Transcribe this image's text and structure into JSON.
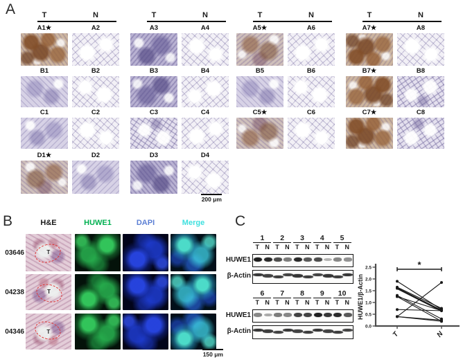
{
  "panelA": {
    "label": "A",
    "pair_headers": [
      "T",
      "N"
    ],
    "rows": [
      {
        "cells": [
          {
            "label": "A1★",
            "stain": "brown-strong"
          },
          {
            "label": "A2",
            "stain": "lacy"
          },
          {
            "label": "A3",
            "stain": "purple"
          },
          {
            "label": "A4",
            "stain": "lacy"
          },
          {
            "label": "A5★",
            "stain": "brown"
          },
          {
            "label": "A6",
            "stain": "lacy"
          },
          {
            "label": "A7★",
            "stain": "brown-strong"
          },
          {
            "label": "A8",
            "stain": "lacy"
          }
        ]
      },
      {
        "cells": [
          {
            "label": "B1",
            "stain": "purple-light"
          },
          {
            "label": "B2",
            "stain": "lacy"
          },
          {
            "label": "B3",
            "stain": "purple"
          },
          {
            "label": "B4",
            "stain": "lacy"
          },
          {
            "label": "B5",
            "stain": "purple-light"
          },
          {
            "label": "B6",
            "stain": "lacy"
          },
          {
            "label": "B7★",
            "stain": "brown-strong"
          },
          {
            "label": "B8",
            "stain": "purple-lacy"
          }
        ]
      },
      {
        "cells": [
          {
            "label": "C1",
            "stain": "purple-light"
          },
          {
            "label": "C2",
            "stain": "lacy"
          },
          {
            "label": "C3",
            "stain": "purple-lacy"
          },
          {
            "label": "C4",
            "stain": "lacy"
          },
          {
            "label": "C5★",
            "stain": "brown"
          },
          {
            "label": "C6",
            "stain": "lacy"
          },
          {
            "label": "C7★",
            "stain": "brown-strong"
          },
          {
            "label": "C8",
            "stain": "purple-lacy"
          }
        ]
      },
      {
        "cells": [
          {
            "label": "D1★",
            "stain": "brown"
          },
          {
            "label": "D2",
            "stain": "purple-light"
          },
          {
            "label": "D3",
            "stain": "purple"
          },
          {
            "label": "D4",
            "stain": "lacy"
          }
        ]
      }
    ],
    "scale_bar": "200 μm"
  },
  "panelB": {
    "label": "B",
    "channel_headers": [
      {
        "label": "H&E",
        "color": "#1a1a1a",
        "type": "he"
      },
      {
        "label": "HUWE1",
        "color": "#00b050",
        "type": "green"
      },
      {
        "label": "DAPI",
        "color": "#5b7fd4",
        "type": "blue"
      },
      {
        "label": "Merge",
        "color": "#3fe0df",
        "type": "merge"
      }
    ],
    "cases": [
      {
        "id": "03646",
        "tumor_mark": "T"
      },
      {
        "id": "04238",
        "tumor_mark": "T"
      },
      {
        "id": "04346",
        "tumor_mark": "T"
      }
    ],
    "scale_bar": "150 μm"
  },
  "panelC": {
    "label": "C",
    "blot_sets": [
      {
        "lane_numbers": [
          "1",
          "2",
          "3",
          "4",
          "5"
        ],
        "condition_labels": [
          "T",
          "N"
        ],
        "rows": [
          {
            "label": "HUWE1",
            "style": "bands",
            "intensities": [
              0.95,
              0.9,
              0.75,
              0.55,
              0.9,
              0.7,
              0.75,
              0.3,
              0.5,
              0.45
            ]
          },
          {
            "label": "β-Actin",
            "style": "wavy",
            "intensities": [
              0.85,
              0.8,
              0.82,
              0.8,
              0.85,
              0.82,
              0.8,
              0.85,
              0.82,
              0.85
            ]
          }
        ]
      },
      {
        "lane_numbers": [
          "6",
          "7",
          "8",
          "9",
          "10"
        ],
        "condition_labels": [
          "T",
          "N"
        ],
        "rows": [
          {
            "label": "HUWE1",
            "style": "bands",
            "intensities": [
              0.5,
              0.35,
              0.55,
              0.5,
              0.8,
              0.8,
              0.95,
              0.85,
              0.9,
              0.7
            ]
          },
          {
            "label": "β-Actin",
            "style": "wavy",
            "intensities": [
              0.85,
              0.82,
              0.8,
              0.85,
              0.8,
              0.82,
              0.85,
              0.8,
              0.82,
              0.8
            ]
          }
        ]
      }
    ]
  },
  "chart_data": {
    "type": "line",
    "title": "",
    "xlabel": "",
    "ylabel": "HUWE1/β-Actin",
    "categories": [
      "T",
      "N"
    ],
    "ylim": [
      0,
      2.5
    ],
    "yticks": [
      0,
      0.5,
      1.0,
      1.5,
      2.0,
      2.5
    ],
    "grid": false,
    "legend": "none",
    "significance": {
      "label": "*",
      "between": [
        "T",
        "N"
      ]
    },
    "series": [
      {
        "name": "pair-1",
        "values": [
          1.9,
          0.7
        ]
      },
      {
        "name": "pair-2",
        "values": [
          1.65,
          0.75
        ]
      },
      {
        "name": "pair-3",
        "values": [
          1.6,
          0.65
        ],
        "thick": true
      },
      {
        "name": "pair-4",
        "values": [
          1.3,
          0.3
        ]
      },
      {
        "name": "pair-5",
        "values": [
          1.25,
          0.65
        ]
      },
      {
        "name": "pair-6",
        "values": [
          1.25,
          0.2
        ]
      },
      {
        "name": "pair-7",
        "values": [
          0.7,
          0.65
        ]
      },
      {
        "name": "pair-8",
        "values": [
          0.4,
          1.85
        ]
      },
      {
        "name": "pair-9",
        "values": [
          0.4,
          0.25
        ]
      },
      {
        "name": "pair-10",
        "values": [
          0.4,
          0.2
        ]
      }
    ]
  }
}
